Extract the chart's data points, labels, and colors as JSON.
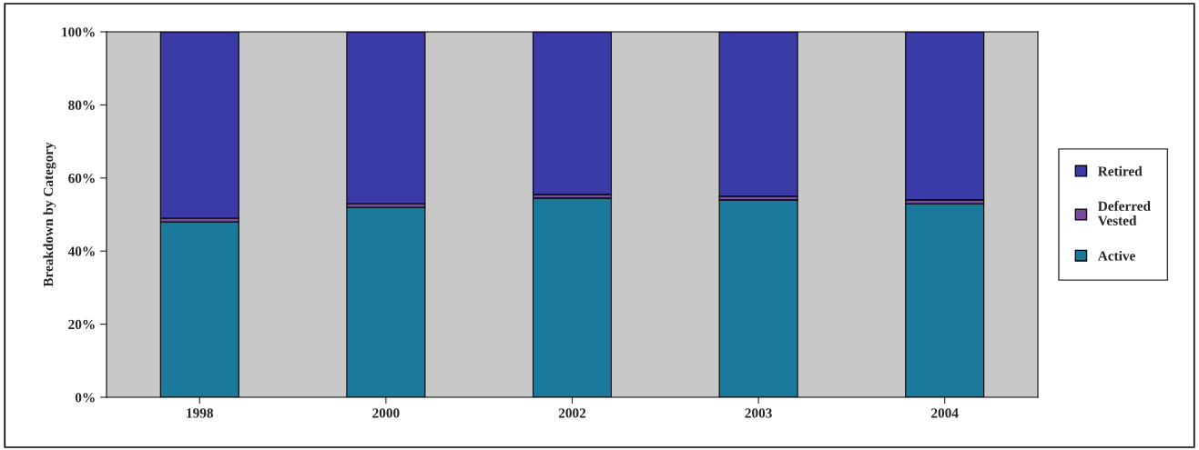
{
  "chart_data": {
    "type": "bar",
    "stacked": true,
    "ylabel": "Breakdown by Category",
    "categories": [
      "1998",
      "2000",
      "2002",
      "2003",
      "2004"
    ],
    "series": [
      {
        "name": "Active",
        "color": "#1b7a9c",
        "values": [
          48,
          52,
          54.5,
          54,
          53
        ]
      },
      {
        "name": "Deferred Vested",
        "color": "#7a4a9e",
        "values": [
          1,
          1,
          1,
          1,
          1
        ]
      },
      {
        "name": "Retired",
        "color": "#3b3ba8",
        "values": [
          51,
          47,
          44.5,
          45,
          46
        ]
      }
    ],
    "ylim": [
      0,
      100
    ],
    "yticks": [
      {
        "value": 0,
        "label": "0%"
      },
      {
        "value": 20,
        "label": "20%"
      },
      {
        "value": 40,
        "label": "40%"
      },
      {
        "value": 60,
        "label": "60%"
      },
      {
        "value": 80,
        "label": "80%"
      },
      {
        "value": 100,
        "label": "100%"
      }
    ],
    "legend": "right"
  }
}
